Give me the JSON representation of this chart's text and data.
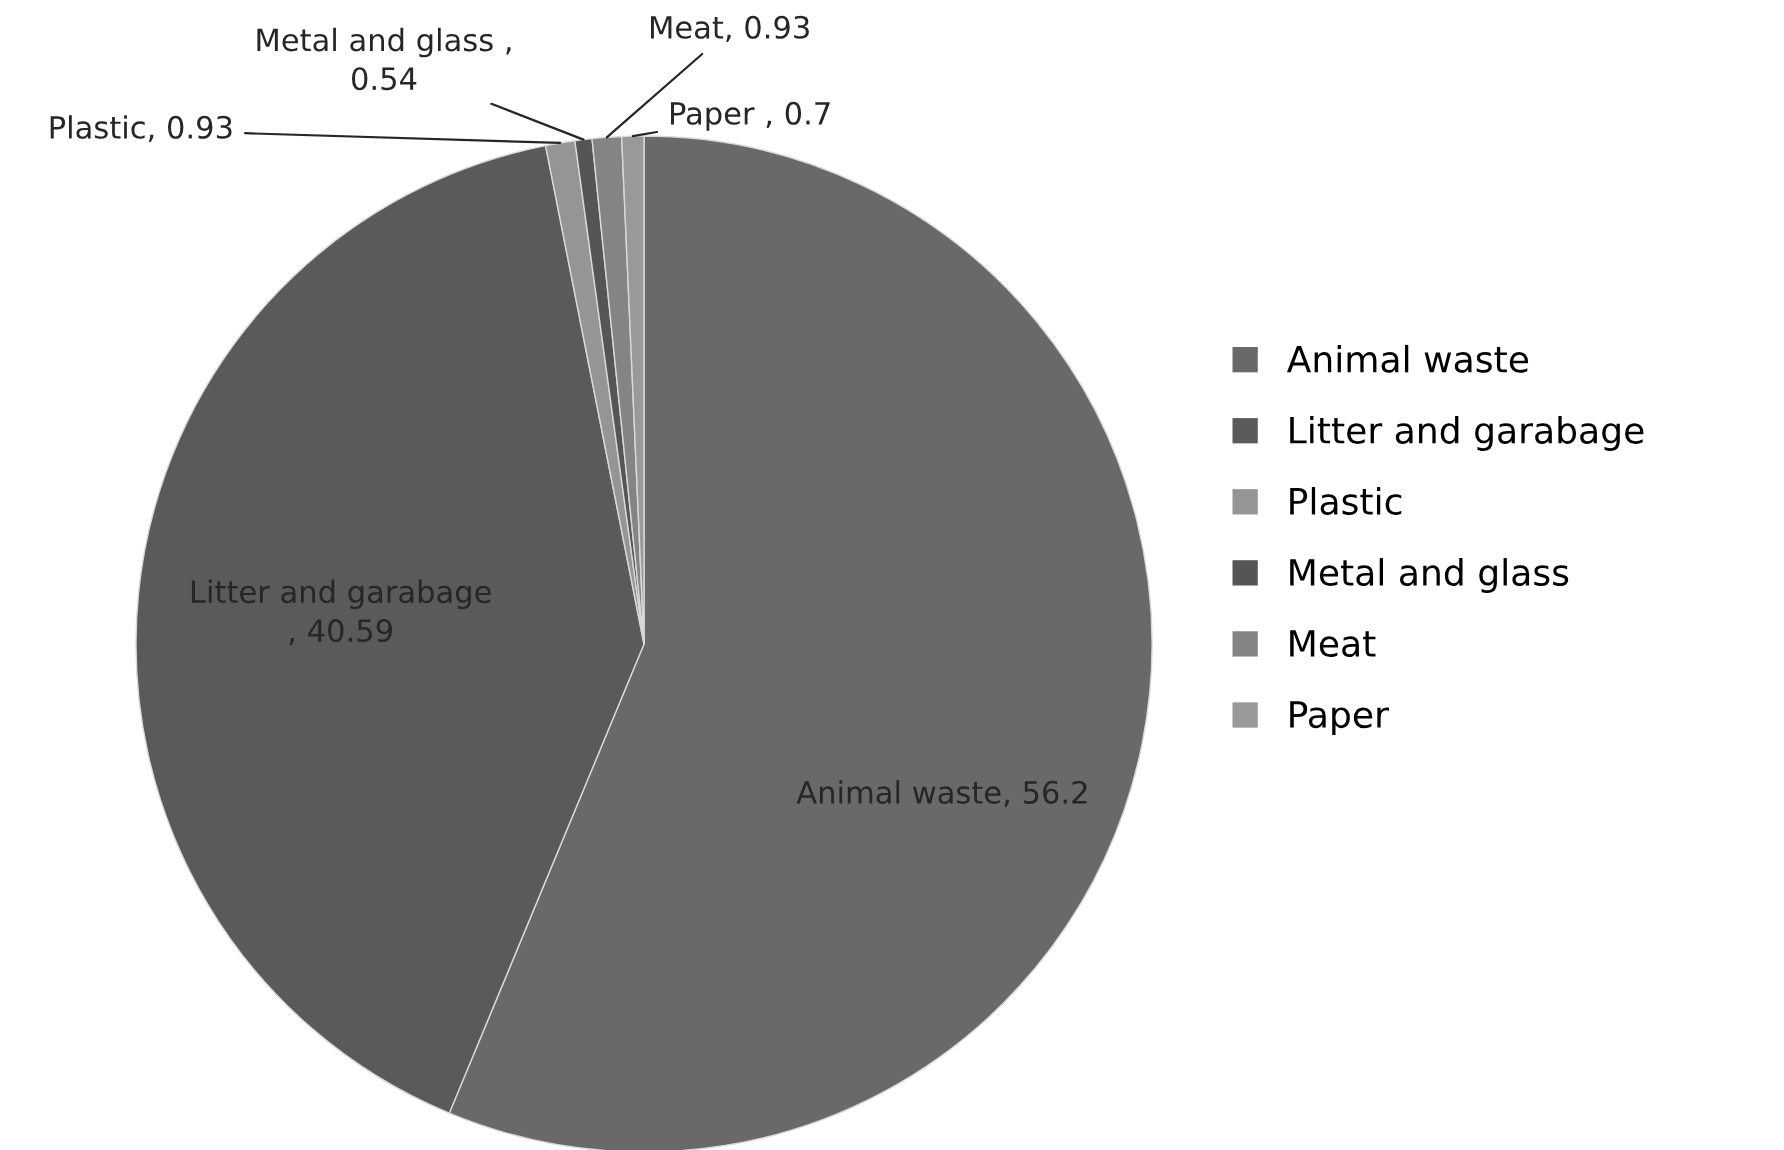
{
  "chart_data": {
    "type": "pie",
    "categories": [
      "Animal waste",
      "Litter and garabage",
      "Plastic",
      "Metal and glass",
      "Meat",
      "Paper"
    ],
    "values": [
      56.2,
      40.59,
      0.93,
      0.54,
      0.93,
      0.7
    ],
    "colors": [
      "#696969",
      "#5a5a5a",
      "#959595",
      "#555555",
      "#848484",
      "#999999"
    ],
    "value_labels": [
      "Animal waste, 56.2",
      "Litter and garabage\n, 40.59",
      "Plastic, 0.93",
      "Metal and glass ,\n0.54",
      "Meat, 0.93",
      "Paper , 0.7"
    ],
    "legend": "right"
  }
}
